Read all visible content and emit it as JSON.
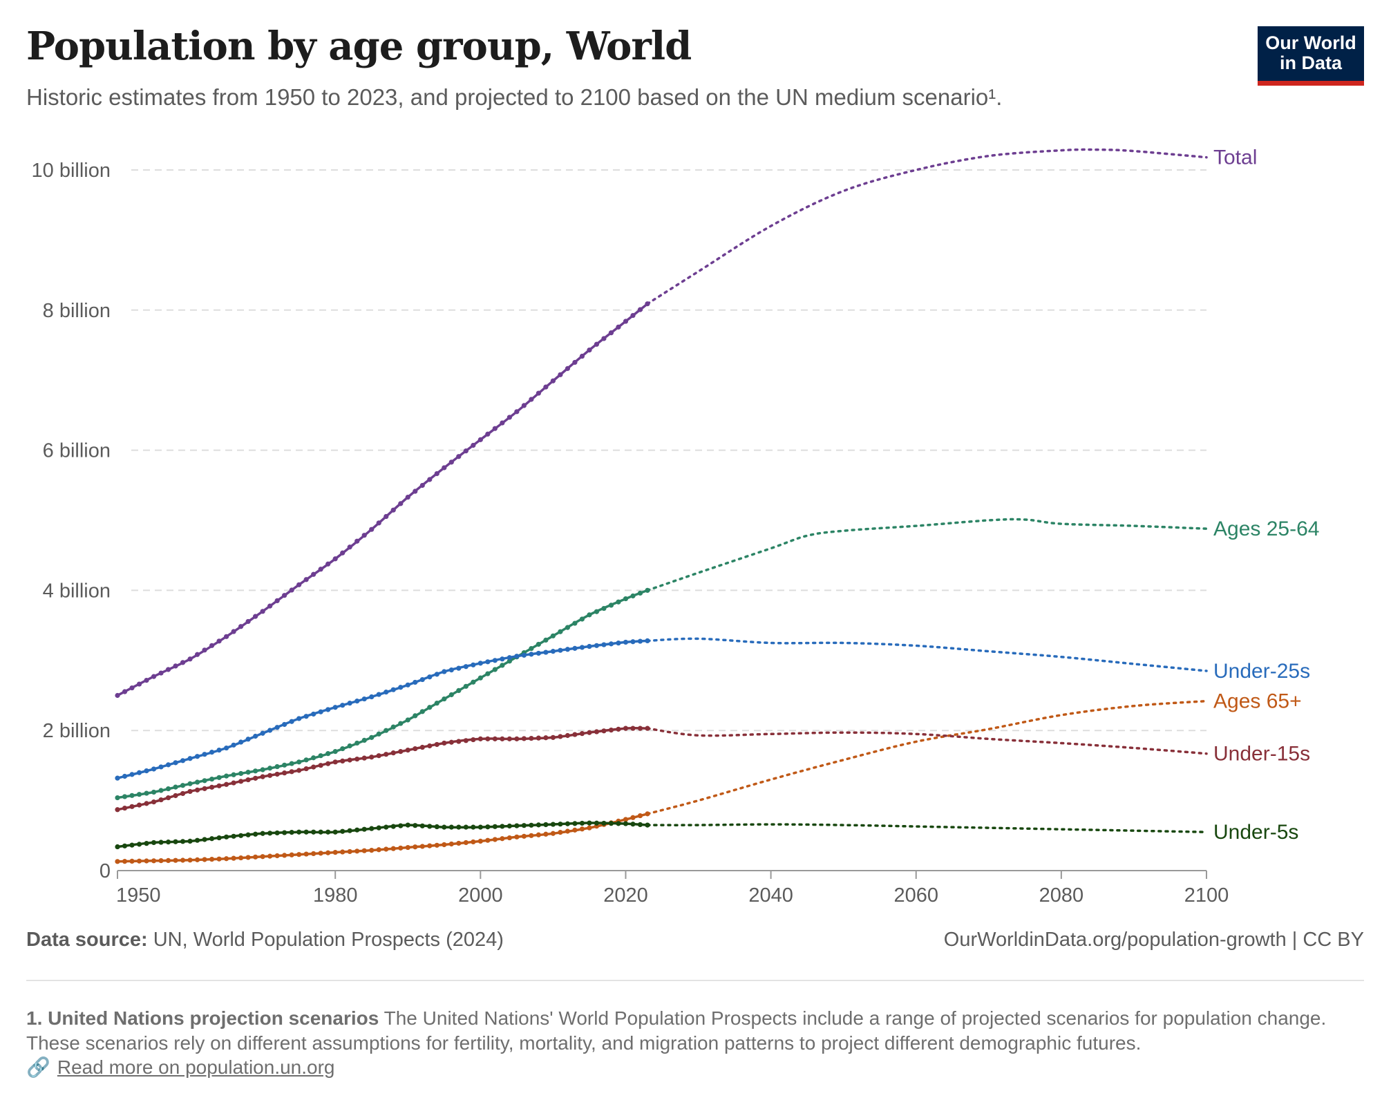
{
  "header": {
    "title": "Population by age group, World",
    "subtitle": "Historic estimates from 1950 to 2023, and projected to 2100 based on the UN medium scenario¹.",
    "logo_line1": "Our World",
    "logo_line2": "in Data"
  },
  "footer": {
    "source_label": "Data source:",
    "source_text": "UN, World Population Prospects (2024)",
    "url_text": "OurWorldinData.org/population-growth | CC BY",
    "footnote_title": "1. United Nations projection scenarios",
    "footnote_text": "The United Nations' World Population Prospects include a range of projected scenarios for population change. These scenarios rely on different assumptions for fertility, mortality, and migration patterns to project different demographic futures.",
    "read_more": "Read more on population.un.org",
    "link_icon": "link-icon"
  },
  "colors": {
    "total": "#6d3e91",
    "ages_25_64": "#2c8465",
    "under_25": "#286bbb",
    "ages_65": "#c05917",
    "under_15": "#883039",
    "under_5": "#18470f",
    "grid": "#dddddd",
    "axis": "#999999",
    "logo_bg": "#002147",
    "logo_accent": "#ce261e"
  },
  "chart_data": {
    "type": "line",
    "title": "Population by age group, World",
    "xlabel": "",
    "ylabel": "",
    "xlim": [
      1950,
      2100
    ],
    "ylim": [
      0,
      10
    ],
    "historic_until": 2023,
    "y_ticks": [
      {
        "value": 0,
        "label": "0"
      },
      {
        "value": 2,
        "label": "2 billion"
      },
      {
        "value": 4,
        "label": "4 billion"
      },
      {
        "value": 6,
        "label": "6 billion"
      },
      {
        "value": 8,
        "label": "8 billion"
      },
      {
        "value": 10,
        "label": "10 billion"
      }
    ],
    "x_ticks": [
      {
        "value": 1950,
        "label": "1950"
      },
      {
        "value": 1980,
        "label": "1980"
      },
      {
        "value": 2000,
        "label": "2000"
      },
      {
        "value": 2020,
        "label": "2020"
      },
      {
        "value": 2040,
        "label": "2040"
      },
      {
        "value": 2060,
        "label": "2060"
      },
      {
        "value": 2080,
        "label": "2080"
      },
      {
        "value": 2100,
        "label": "2100"
      }
    ],
    "grid": "horizontal dashed",
    "legend": "inline at line ends (right)",
    "series": [
      {
        "name": "Total",
        "key": "total",
        "historic": [
          [
            1950,
            2.5
          ],
          [
            1955,
            2.77
          ],
          [
            1960,
            3.02
          ],
          [
            1965,
            3.34
          ],
          [
            1970,
            3.7
          ],
          [
            1975,
            4.08
          ],
          [
            1980,
            4.45
          ],
          [
            1985,
            4.87
          ],
          [
            1990,
            5.33
          ],
          [
            1995,
            5.75
          ],
          [
            2000,
            6.15
          ],
          [
            2005,
            6.55
          ],
          [
            2010,
            6.99
          ],
          [
            2015,
            7.43
          ],
          [
            2020,
            7.84
          ],
          [
            2023,
            8.09
          ]
        ],
        "projected": [
          [
            2023,
            8.09
          ],
          [
            2030,
            8.55
          ],
          [
            2040,
            9.2
          ],
          [
            2050,
            9.7
          ],
          [
            2060,
            10.0
          ],
          [
            2070,
            10.2
          ],
          [
            2080,
            10.28
          ],
          [
            2085,
            10.29
          ],
          [
            2090,
            10.27
          ],
          [
            2100,
            10.18
          ]
        ]
      },
      {
        "name": "Ages 25-64",
        "key": "ages_25_64",
        "historic": [
          [
            1950,
            1.04
          ],
          [
            1955,
            1.12
          ],
          [
            1960,
            1.24
          ],
          [
            1965,
            1.35
          ],
          [
            1970,
            1.44
          ],
          [
            1975,
            1.55
          ],
          [
            1980,
            1.7
          ],
          [
            1985,
            1.9
          ],
          [
            1990,
            2.15
          ],
          [
            1995,
            2.45
          ],
          [
            2000,
            2.75
          ],
          [
            2005,
            3.05
          ],
          [
            2010,
            3.35
          ],
          [
            2015,
            3.65
          ],
          [
            2020,
            3.88
          ],
          [
            2023,
            4.0
          ]
        ],
        "projected": [
          [
            2023,
            4.0
          ],
          [
            2030,
            4.25
          ],
          [
            2040,
            4.6
          ],
          [
            2045,
            4.78
          ],
          [
            2050,
            4.85
          ],
          [
            2060,
            4.92
          ],
          [
            2070,
            5.0
          ],
          [
            2075,
            5.01
          ],
          [
            2080,
            4.95
          ],
          [
            2090,
            4.92
          ],
          [
            2100,
            4.88
          ]
        ]
      },
      {
        "name": "Under-25s",
        "key": "under_25",
        "historic": [
          [
            1950,
            1.32
          ],
          [
            1955,
            1.45
          ],
          [
            1960,
            1.6
          ],
          [
            1965,
            1.75
          ],
          [
            1970,
            1.96
          ],
          [
            1975,
            2.17
          ],
          [
            1980,
            2.33
          ],
          [
            1985,
            2.48
          ],
          [
            1990,
            2.65
          ],
          [
            1995,
            2.84
          ],
          [
            2000,
            2.96
          ],
          [
            2005,
            3.06
          ],
          [
            2010,
            3.13
          ],
          [
            2015,
            3.2
          ],
          [
            2020,
            3.26
          ],
          [
            2023,
            3.28
          ]
        ],
        "projected": [
          [
            2023,
            3.28
          ],
          [
            2030,
            3.31
          ],
          [
            2040,
            3.25
          ],
          [
            2050,
            3.25
          ],
          [
            2060,
            3.21
          ],
          [
            2070,
            3.13
          ],
          [
            2080,
            3.05
          ],
          [
            2090,
            2.95
          ],
          [
            2100,
            2.85
          ]
        ]
      },
      {
        "name": "Ages 65+",
        "key": "ages_65",
        "historic": [
          [
            1950,
            0.13
          ],
          [
            1955,
            0.14
          ],
          [
            1960,
            0.15
          ],
          [
            1965,
            0.17
          ],
          [
            1970,
            0.2
          ],
          [
            1975,
            0.23
          ],
          [
            1980,
            0.26
          ],
          [
            1985,
            0.29
          ],
          [
            1990,
            0.33
          ],
          [
            1995,
            0.37
          ],
          [
            2000,
            0.42
          ],
          [
            2005,
            0.48
          ],
          [
            2010,
            0.53
          ],
          [
            2015,
            0.61
          ],
          [
            2020,
            0.73
          ],
          [
            2023,
            0.81
          ]
        ],
        "projected": [
          [
            2023,
            0.81
          ],
          [
            2030,
            1.0
          ],
          [
            2040,
            1.3
          ],
          [
            2050,
            1.58
          ],
          [
            2060,
            1.84
          ],
          [
            2070,
            2.02
          ],
          [
            2080,
            2.22
          ],
          [
            2090,
            2.35
          ],
          [
            2100,
            2.42
          ]
        ]
      },
      {
        "name": "Under-15s",
        "key": "under_15",
        "historic": [
          [
            1950,
            0.87
          ],
          [
            1955,
            0.98
          ],
          [
            1960,
            1.13
          ],
          [
            1965,
            1.23
          ],
          [
            1970,
            1.34
          ],
          [
            1975,
            1.43
          ],
          [
            1980,
            1.55
          ],
          [
            1985,
            1.62
          ],
          [
            1990,
            1.72
          ],
          [
            1995,
            1.82
          ],
          [
            2000,
            1.88
          ],
          [
            2005,
            1.88
          ],
          [
            2010,
            1.9
          ],
          [
            2015,
            1.97
          ],
          [
            2020,
            2.03
          ],
          [
            2023,
            2.03
          ]
        ],
        "projected": [
          [
            2023,
            2.03
          ],
          [
            2030,
            1.93
          ],
          [
            2040,
            1.95
          ],
          [
            2050,
            1.97
          ],
          [
            2060,
            1.95
          ],
          [
            2070,
            1.88
          ],
          [
            2080,
            1.82
          ],
          [
            2090,
            1.75
          ],
          [
            2100,
            1.67
          ]
        ]
      },
      {
        "name": "Under-5s",
        "key": "under_5",
        "historic": [
          [
            1950,
            0.34
          ],
          [
            1955,
            0.4
          ],
          [
            1960,
            0.42
          ],
          [
            1965,
            0.48
          ],
          [
            1970,
            0.53
          ],
          [
            1975,
            0.55
          ],
          [
            1980,
            0.55
          ],
          [
            1985,
            0.6
          ],
          [
            1990,
            0.65
          ],
          [
            1995,
            0.62
          ],
          [
            2000,
            0.62
          ],
          [
            2005,
            0.64
          ],
          [
            2010,
            0.66
          ],
          [
            2015,
            0.68
          ],
          [
            2020,
            0.67
          ],
          [
            2023,
            0.65
          ]
        ],
        "projected": [
          [
            2023,
            0.65
          ],
          [
            2030,
            0.65
          ],
          [
            2040,
            0.66
          ],
          [
            2050,
            0.65
          ],
          [
            2060,
            0.63
          ],
          [
            2070,
            0.61
          ],
          [
            2080,
            0.59
          ],
          [
            2090,
            0.57
          ],
          [
            2100,
            0.55
          ]
        ]
      }
    ]
  }
}
